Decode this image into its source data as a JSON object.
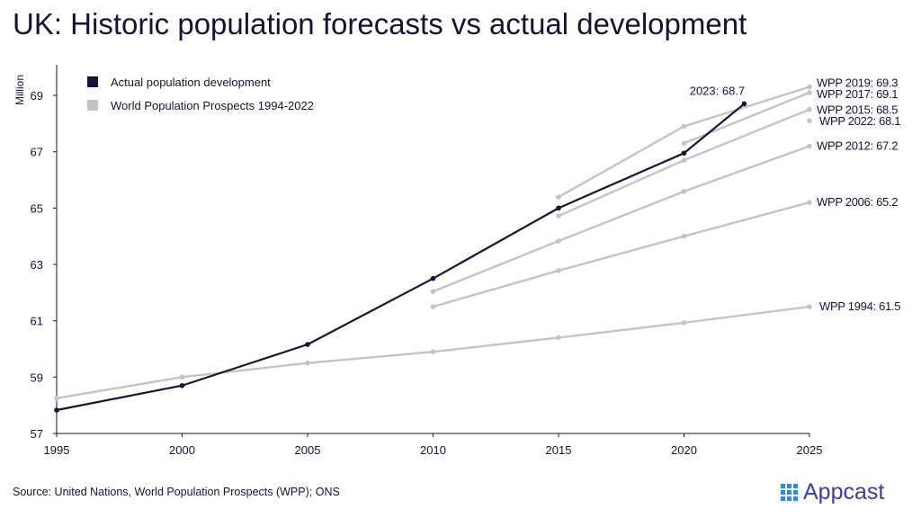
{
  "title": "UK: Historic population forecasts vs actual development",
  "source": "Source: United Nations, World Population Prospects (WPP); ONS",
  "logo": "Appcast",
  "colors": {
    "actual": "#14143c",
    "forecast": "#c4c4c4"
  },
  "chart_data": {
    "type": "line",
    "title": "UK: Historic population forecasts vs actual development",
    "ylabel": "Million",
    "xlabel": "",
    "xlim": [
      1995,
      2025
    ],
    "ylim": [
      57,
      69.6
    ],
    "xticks": [
      1995,
      2000,
      2005,
      2010,
      2015,
      2020,
      2025
    ],
    "yticks": [
      57,
      59,
      61,
      63,
      65,
      67,
      69
    ],
    "legend": {
      "placement": "top-left",
      "entries": [
        "Actual population development",
        "World Population Prospects 1994-2022"
      ]
    },
    "series": [
      {
        "name": "Actual population development",
        "kind": "actual",
        "x": [
          1995,
          2000,
          2005,
          2010,
          2015,
          2020,
          2022.4
        ],
        "y": [
          57.83,
          58.7,
          60.16,
          62.5,
          65.0,
          66.95,
          68.7
        ],
        "end_label": "2023: 68.7"
      },
      {
        "name": "WPP 1994",
        "kind": "forecast",
        "x": [
          1995,
          2000,
          2005,
          2010,
          2015,
          2020,
          2025
        ],
        "y": [
          58.25,
          59.0,
          59.5,
          59.9,
          60.4,
          60.93,
          61.5
        ],
        "end_label": "WPP 1994: 61.5"
      },
      {
        "name": "WPP 2006",
        "kind": "forecast",
        "x": [
          2010,
          2015,
          2020,
          2025
        ],
        "y": [
          61.5,
          62.78,
          64.0,
          65.2
        ],
        "end_label": "WPP 2006: 65.2"
      },
      {
        "name": "WPP 2012",
        "kind": "forecast",
        "x": [
          2010,
          2015,
          2020,
          2025
        ],
        "y": [
          62.04,
          63.83,
          65.59,
          67.2
        ],
        "end_label": "WPP 2012: 67.2"
      },
      {
        "name": "WPP 2015",
        "kind": "forecast",
        "x": [
          2015,
          2020,
          2025
        ],
        "y": [
          64.72,
          66.7,
          68.5
        ],
        "end_label": "WPP 2015: 68.5"
      },
      {
        "name": "WPP 2017",
        "kind": "forecast",
        "x": [
          2020,
          2025
        ],
        "y": [
          67.3,
          69.1
        ],
        "end_label": "WPP 2017: 69.1"
      },
      {
        "name": "WPP 2019",
        "kind": "forecast",
        "x": [
          2015,
          2020,
          2025
        ],
        "y": [
          65.39,
          67.9,
          69.3
        ],
        "end_label": "WPP 2019: 69.3"
      },
      {
        "name": "WPP 2022",
        "kind": "forecast",
        "x": [
          2025
        ],
        "y": [
          68.1
        ],
        "end_label": "WPP 2022: 68.1"
      }
    ]
  }
}
